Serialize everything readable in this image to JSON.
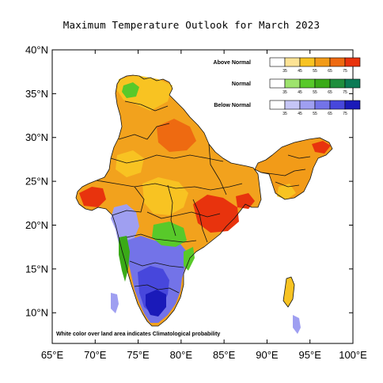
{
  "title": "Maximum Temperature Outlook for March 2023",
  "axes": {
    "lat_labels": [
      "40°N",
      "35°N",
      "30°N",
      "25°N",
      "20°N",
      "15°N",
      "10°N"
    ],
    "lat_values": [
      40,
      35,
      30,
      25,
      20,
      15,
      10
    ],
    "lon_labels": [
      "65°E",
      "70°E",
      "75°E",
      "80°E",
      "85°E",
      "90°E",
      "95°E",
      "100°E"
    ],
    "lon_values": [
      65,
      70,
      75,
      80,
      85,
      90,
      95,
      100
    ],
    "lon_range": [
      65,
      100
    ],
    "lat_range": [
      6.5,
      40
    ]
  },
  "legend": {
    "ticks": [
      "35",
      "45",
      "55",
      "65",
      "75"
    ],
    "categories": [
      {
        "name": "Above Normal",
        "colors": [
          "#ffffff",
          "#fde395",
          "#f8c322",
          "#f29b18",
          "#ee6a11",
          "#e8330d"
        ]
      },
      {
        "name": "Normal",
        "colors": [
          "#ffffff",
          "#9ee36d",
          "#58c92a",
          "#3aaa18",
          "#1f8e3d",
          "#0a7a55"
        ]
      },
      {
        "name": "Below Normal",
        "colors": [
          "#ffffff",
          "#c6c6f6",
          "#9f9ff1",
          "#7373e8",
          "#4747dc",
          "#1a1ab9"
        ]
      }
    ]
  },
  "note": "White color over land area indicates Climatological probability",
  "colors": {
    "above_1": "#fde395",
    "above_2": "#f8c322",
    "above_3": "#f29b18",
    "above_4": "#ee6a11",
    "above_5": "#e8330d",
    "normal_2": "#58c92a",
    "normal_3": "#3aaa18",
    "below_2": "#9f9ff1",
    "below_3": "#7373e8",
    "below_4": "#4747dc",
    "below_5": "#1a1ab9"
  }
}
